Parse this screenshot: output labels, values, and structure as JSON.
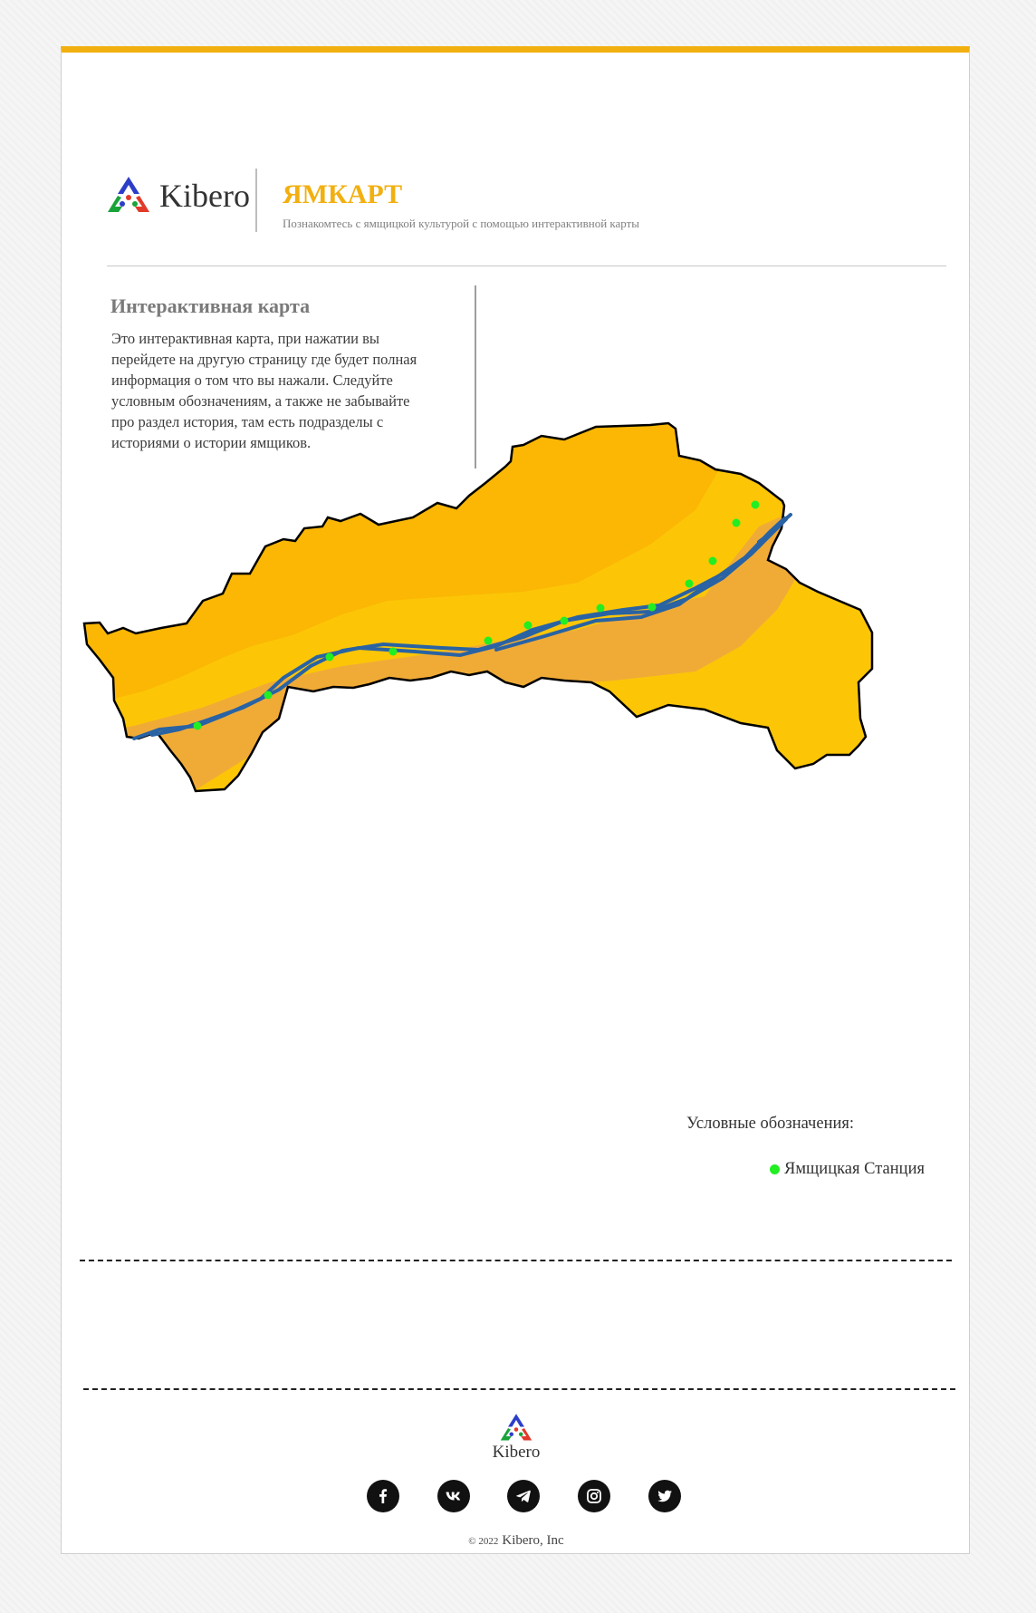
{
  "header": {
    "logo_text": "Kibero",
    "title": "ЯМКАРТ",
    "subtitle": "Познакомтесь с ямщицкой культурой с помощью интерактивной карты"
  },
  "intro": {
    "title": "Интерактивная карта",
    "text": "Это интерактивная карта, при нажатии вы перейдете на другую страницу где будет полная информация о том что вы нажали. Следуйте условным обозначениям, а также не забывайте про раздел история, там есть подразделы с историями о истории ямщиков."
  },
  "map": {
    "colors": {
      "region_light": "#fcc607",
      "region_mid": "#fbb704",
      "region_dark": "#f0ab37",
      "river": "#2a63a3",
      "station": "#22ee22",
      "border": "#000000"
    }
  },
  "legend": {
    "title": "Условные обозначения:",
    "items": [
      {
        "label": "Ямщицкая Станция",
        "color": "#22ee22",
        "icon": "green-dot-icon"
      }
    ]
  },
  "footer": {
    "logo_text": "Kibero",
    "copyright_symbol": "© 2022",
    "copyright_text": "Kibero, Inc",
    "socials": [
      {
        "name": "facebook",
        "icon": "facebook-icon"
      },
      {
        "name": "vk",
        "icon": "vk-icon"
      },
      {
        "name": "telegram",
        "icon": "telegram-icon"
      },
      {
        "name": "instagram",
        "icon": "instagram-icon"
      },
      {
        "name": "twitter",
        "icon": "twitter-icon"
      }
    ]
  }
}
